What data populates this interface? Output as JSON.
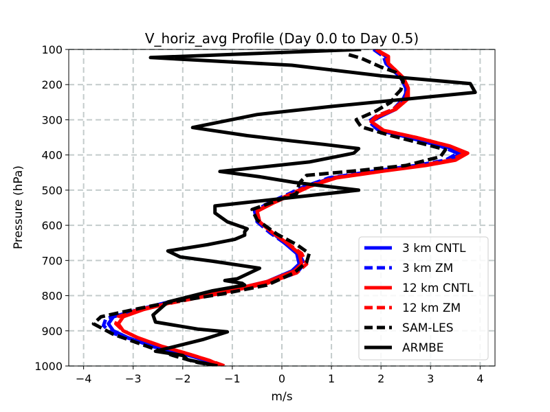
{
  "chart_data": {
    "type": "line",
    "title": "V_horiz_avg Profile (Day 0.0 to Day 0.5)",
    "xlabel": "m/s",
    "ylabel": "Pressure (hPa)",
    "xlim": [
      -4.3,
      4.3
    ],
    "ylim": [
      1000,
      100
    ],
    "y_inverted": true,
    "grid": true,
    "legend_position": "lower-right",
    "xticks": [
      "−4",
      "−3",
      "−2",
      "−1",
      "0",
      "1",
      "2",
      "3",
      "4"
    ],
    "xtick_values": [
      -4,
      -3,
      -2,
      -1,
      0,
      1,
      2,
      3,
      4
    ],
    "yticks": [
      "100",
      "200",
      "300",
      "400",
      "500",
      "600",
      "700",
      "800",
      "900",
      "1000"
    ],
    "ytick_values": [
      100,
      200,
      300,
      400,
      500,
      600,
      700,
      800,
      900,
      1000
    ],
    "series": [
      {
        "name": "3 km CNTL",
        "color": "#0000ff",
        "dash": "solid",
        "points": [
          [
            1.9,
            100
          ],
          [
            2.1,
            120
          ],
          [
            2.1,
            140
          ],
          [
            2.25,
            160
          ],
          [
            2.4,
            180
          ],
          [
            2.5,
            210
          ],
          [
            2.5,
            240
          ],
          [
            2.3,
            270
          ],
          [
            2.0,
            290
          ],
          [
            1.8,
            305
          ],
          [
            2.0,
            330
          ],
          [
            2.6,
            350
          ],
          [
            3.3,
            375
          ],
          [
            3.6,
            395
          ],
          [
            3.4,
            415
          ],
          [
            2.8,
            430
          ],
          [
            2.0,
            445
          ],
          [
            1.0,
            465
          ],
          [
            0.5,
            490
          ],
          [
            0.2,
            510
          ],
          [
            -0.2,
            535
          ],
          [
            -0.5,
            560
          ],
          [
            -0.45,
            590
          ],
          [
            -0.2,
            620
          ],
          [
            0.05,
            650
          ],
          [
            0.3,
            680
          ],
          [
            0.35,
            710
          ],
          [
            0.2,
            730
          ],
          [
            -0.3,
            760
          ],
          [
            -1.2,
            790
          ],
          [
            -2.2,
            815
          ],
          [
            -2.9,
            840
          ],
          [
            -3.4,
            860
          ],
          [
            -3.5,
            880
          ],
          [
            -3.4,
            900
          ],
          [
            -3.1,
            920
          ],
          [
            -2.6,
            945
          ],
          [
            -2.0,
            965
          ],
          [
            -1.5,
            985
          ],
          [
            -1.2,
            1000
          ]
        ]
      },
      {
        "name": "3 km ZM",
        "color": "#0000ff",
        "dash": "dashed",
        "points": [
          [
            1.85,
            100
          ],
          [
            2.05,
            120
          ],
          [
            2.1,
            140
          ],
          [
            2.25,
            160
          ],
          [
            2.4,
            180
          ],
          [
            2.55,
            210
          ],
          [
            2.45,
            240
          ],
          [
            2.25,
            270
          ],
          [
            1.9,
            290
          ],
          [
            1.75,
            305
          ],
          [
            1.95,
            330
          ],
          [
            2.55,
            350
          ],
          [
            3.2,
            375
          ],
          [
            3.55,
            395
          ],
          [
            3.3,
            415
          ],
          [
            2.7,
            430
          ],
          [
            1.9,
            445
          ],
          [
            0.95,
            465
          ],
          [
            0.45,
            490
          ],
          [
            0.15,
            510
          ],
          [
            -0.25,
            535
          ],
          [
            -0.55,
            560
          ],
          [
            -0.5,
            590
          ],
          [
            -0.25,
            620
          ],
          [
            0.05,
            650
          ],
          [
            0.35,
            680
          ],
          [
            0.45,
            710
          ],
          [
            0.3,
            735
          ],
          [
            -0.3,
            765
          ],
          [
            -1.3,
            795
          ],
          [
            -2.3,
            820
          ],
          [
            -3.0,
            845
          ],
          [
            -3.55,
            865
          ],
          [
            -3.6,
            885
          ],
          [
            -3.45,
            905
          ],
          [
            -3.0,
            925
          ],
          [
            -2.5,
            945
          ],
          [
            -1.95,
            965
          ],
          [
            -1.5,
            985
          ],
          [
            -1.15,
            1000
          ]
        ]
      },
      {
        "name": "12 km CNTL",
        "color": "#ff0000",
        "dash": "solid",
        "points": [
          [
            1.9,
            100
          ],
          [
            2.15,
            120
          ],
          [
            2.15,
            140
          ],
          [
            2.3,
            160
          ],
          [
            2.45,
            180
          ],
          [
            2.55,
            210
          ],
          [
            2.55,
            240
          ],
          [
            2.3,
            270
          ],
          [
            1.95,
            290
          ],
          [
            1.8,
            305
          ],
          [
            2.05,
            330
          ],
          [
            2.7,
            350
          ],
          [
            3.4,
            375
          ],
          [
            3.75,
            395
          ],
          [
            3.5,
            415
          ],
          [
            2.9,
            430
          ],
          [
            2.1,
            445
          ],
          [
            1.1,
            465
          ],
          [
            0.55,
            490
          ],
          [
            0.25,
            510
          ],
          [
            -0.15,
            535
          ],
          [
            -0.5,
            560
          ],
          [
            -0.45,
            590
          ],
          [
            -0.2,
            620
          ],
          [
            0.1,
            650
          ],
          [
            0.35,
            680
          ],
          [
            0.4,
            710
          ],
          [
            0.25,
            730
          ],
          [
            -0.3,
            760
          ],
          [
            -1.2,
            790
          ],
          [
            -2.1,
            815
          ],
          [
            -2.8,
            840
          ],
          [
            -3.2,
            860
          ],
          [
            -3.3,
            880
          ],
          [
            -3.2,
            900
          ],
          [
            -2.9,
            920
          ],
          [
            -2.4,
            945
          ],
          [
            -1.9,
            965
          ],
          [
            -1.45,
            985
          ],
          [
            -1.2,
            1000
          ]
        ]
      },
      {
        "name": "12 km ZM",
        "color": "#ff0000",
        "dash": "dashed",
        "points": [
          [
            1.9,
            100
          ],
          [
            2.1,
            120
          ],
          [
            2.15,
            140
          ],
          [
            2.3,
            160
          ],
          [
            2.45,
            180
          ],
          [
            2.55,
            210
          ],
          [
            2.5,
            240
          ],
          [
            2.25,
            270
          ],
          [
            1.9,
            290
          ],
          [
            1.8,
            305
          ],
          [
            2.05,
            330
          ],
          [
            2.7,
            350
          ],
          [
            3.4,
            375
          ],
          [
            3.7,
            395
          ],
          [
            3.4,
            415
          ],
          [
            2.8,
            430
          ],
          [
            2.0,
            445
          ],
          [
            1.05,
            465
          ],
          [
            0.5,
            490
          ],
          [
            0.2,
            510
          ],
          [
            -0.2,
            535
          ],
          [
            -0.5,
            560
          ],
          [
            -0.45,
            590
          ],
          [
            -0.2,
            620
          ],
          [
            0.1,
            650
          ],
          [
            0.4,
            680
          ],
          [
            0.5,
            710
          ],
          [
            0.3,
            735
          ],
          [
            -0.3,
            765
          ],
          [
            -1.3,
            795
          ],
          [
            -2.2,
            820
          ],
          [
            -2.9,
            840
          ],
          [
            -3.3,
            860
          ],
          [
            -3.35,
            880
          ],
          [
            -3.2,
            900
          ],
          [
            -2.9,
            920
          ],
          [
            -2.4,
            945
          ],
          [
            -1.9,
            965
          ],
          [
            -1.45,
            985
          ],
          [
            -1.15,
            1000
          ]
        ]
      },
      {
        "name": "SAM-LES",
        "color": "#000000",
        "dash": "dashed",
        "points": [
          [
            1.35,
            115
          ],
          [
            1.6,
            125
          ],
          [
            2.0,
            150
          ],
          [
            2.3,
            165
          ],
          [
            2.45,
            190
          ],
          [
            2.4,
            215
          ],
          [
            2.3,
            230
          ],
          [
            2.2,
            250
          ],
          [
            1.9,
            275
          ],
          [
            1.5,
            300
          ],
          [
            1.6,
            320
          ],
          [
            2.2,
            345
          ],
          [
            2.9,
            370
          ],
          [
            3.3,
            385
          ],
          [
            3.2,
            405
          ],
          [
            2.5,
            430
          ],
          [
            1.5,
            445
          ],
          [
            0.5,
            458
          ],
          [
            0.35,
            480
          ],
          [
            0.3,
            510
          ],
          [
            -0.2,
            535
          ],
          [
            -0.6,
            555
          ],
          [
            -0.5,
            585
          ],
          [
            -0.1,
            625
          ],
          [
            0.3,
            655
          ],
          [
            0.55,
            680
          ],
          [
            0.5,
            705
          ],
          [
            0.25,
            735
          ],
          [
            -0.3,
            770
          ],
          [
            -1.2,
            795
          ],
          [
            -2.3,
            820
          ],
          [
            -3.0,
            840
          ],
          [
            -3.65,
            860
          ],
          [
            -3.8,
            880
          ],
          [
            -3.6,
            895
          ],
          [
            -3.4,
            910
          ],
          [
            -3.0,
            930
          ],
          [
            -2.6,
            950
          ],
          [
            -2.2,
            970
          ],
          [
            -1.7,
            990
          ],
          [
            -1.3,
            1000
          ]
        ]
      },
      {
        "name": "ARMBE",
        "color": "#000000",
        "dash": "solid",
        "points": [
          [
            1.6,
            100
          ],
          [
            -2.65,
            123
          ],
          [
            0.2,
            145
          ],
          [
            2.0,
            175
          ],
          [
            3.8,
            197
          ],
          [
            3.9,
            222
          ],
          [
            1.0,
            262
          ],
          [
            -0.5,
            285
          ],
          [
            -1.8,
            322
          ],
          [
            -0.7,
            345
          ],
          [
            0.2,
            360
          ],
          [
            0.85,
            370
          ],
          [
            1.55,
            382
          ],
          [
            1.45,
            395
          ],
          [
            0.55,
            420
          ],
          [
            -1.25,
            447
          ],
          [
            -0.45,
            462
          ],
          [
            0.25,
            478
          ],
          [
            1.55,
            500
          ],
          [
            -1.35,
            545
          ],
          [
            -1.35,
            565
          ],
          [
            -1.1,
            590
          ],
          [
            -0.7,
            610
          ],
          [
            -0.75,
            618
          ],
          [
            -0.75,
            628
          ],
          [
            -0.95,
            640
          ],
          [
            -1.5,
            655
          ],
          [
            -2.3,
            673
          ],
          [
            -2.05,
            690
          ],
          [
            -1.4,
            702
          ],
          [
            -0.45,
            722
          ],
          [
            -0.9,
            752
          ],
          [
            -1.15,
            757
          ],
          [
            -0.8,
            765
          ],
          [
            -0.75,
            770
          ],
          [
            -1.4,
            786
          ],
          [
            -2.3,
            818
          ],
          [
            -2.6,
            855
          ],
          [
            -2.55,
            875
          ],
          [
            -1.7,
            895
          ],
          [
            -1.1,
            903
          ],
          [
            -1.6,
            925
          ],
          [
            -2.55,
            958
          ],
          [
            -2.0,
            970
          ],
          [
            -1.9,
            982
          ],
          [
            -1.6,
            991
          ],
          [
            -1.3,
            1000
          ]
        ]
      }
    ]
  }
}
